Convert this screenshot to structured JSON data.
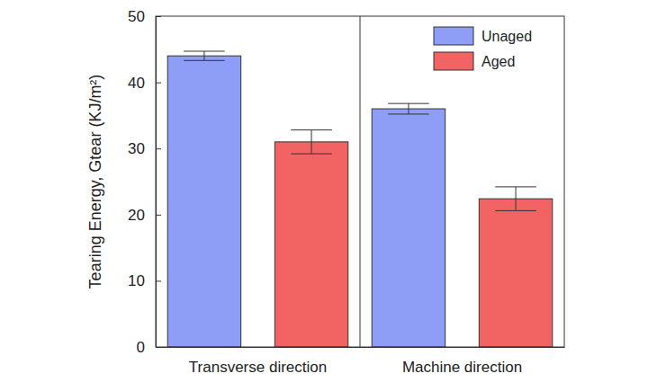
{
  "chart_data": {
    "type": "bar",
    "y_label": "Tearing Energy, Gtear (KJ/m²)",
    "categories": [
      "Transverse direction",
      "Machine direction"
    ],
    "series": [
      {
        "name": "Unaged",
        "color": "#8e9ef6",
        "values": [
          44,
          36
        ],
        "errors": [
          0.7,
          0.8
        ]
      },
      {
        "name": "Aged",
        "color": "#f26464",
        "values": [
          31,
          22.4
        ],
        "errors": [
          1.8,
          1.8
        ]
      }
    ],
    "ylim": [
      0,
      50
    ],
    "yticks": [
      0,
      10,
      20,
      30,
      40,
      50
    ],
    "legend": "upper right"
  }
}
